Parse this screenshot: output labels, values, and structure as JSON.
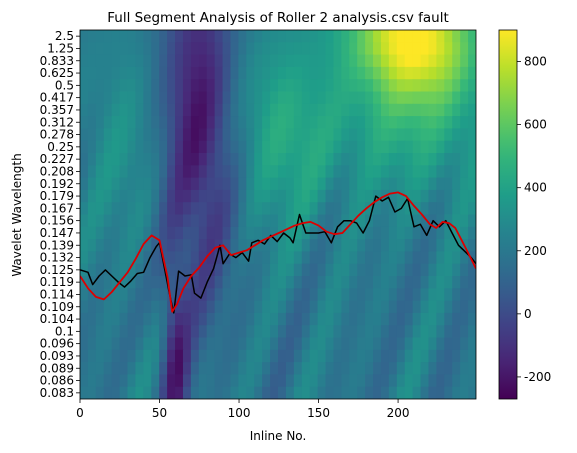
{
  "chart_data": {
    "type": "heatmap",
    "title": "Full Segment Analysis of Roller 2 analysis.csv fault",
    "xlabel": "Inline No.",
    "ylabel": "Wavelet Wavelength",
    "xlim": [
      0,
      249
    ],
    "x_ticks": [
      0,
      50,
      100,
      150,
      200
    ],
    "y_ticks": [
      "2.5",
      "1.25",
      "0.833",
      "0.625",
      "0.5",
      "0.417",
      "0.357",
      "0.312",
      "0.278",
      "0.25",
      "0.227",
      "0.208",
      "0.192",
      "0.179",
      "0.167",
      "0.156",
      "0.147",
      "0.139",
      "0.132",
      "0.125",
      "0.119",
      "0.114",
      "0.109",
      "0.104",
      "0.1",
      "0.096",
      "0.093",
      "0.089",
      "0.086",
      "0.083"
    ],
    "colorbar": {
      "colormap": "viridis",
      "range": [
        -270,
        900
      ],
      "ticks": [
        -200,
        0,
        200,
        400,
        600,
        800
      ]
    },
    "colormap_stops": [
      "#440154",
      "#482878",
      "#3e4989",
      "#31688e",
      "#26828e",
      "#1f9e89",
      "#35b779",
      "#6ece58",
      "#b5de2b",
      "#fde725"
    ],
    "series": [
      {
        "color": "#000000",
        "x": [
          0,
          5,
          8,
          12,
          16,
          20,
          24,
          28,
          32,
          36,
          40,
          44,
          48,
          50,
          53,
          56,
          59,
          62,
          64,
          66,
          70,
          72,
          76,
          80,
          84,
          88,
          90,
          94,
          98,
          102,
          106,
          108,
          112,
          116,
          120,
          124,
          128,
          132,
          134,
          138,
          142,
          146,
          150,
          154,
          158,
          162,
          166,
          170,
          174,
          178,
          182,
          186,
          190,
          194,
          198,
          202,
          206,
          210,
          214,
          218,
          222,
          226,
          230,
          234,
          238,
          242,
          246,
          249
        ],
        "y": [
          19.0,
          19.2,
          20.2,
          19.5,
          19.0,
          19.5,
          20.0,
          20.4,
          19.9,
          19.3,
          19.2,
          18.0,
          17.1,
          16.8,
          18.8,
          20.8,
          22.5,
          19.1,
          19.3,
          19.5,
          19.4,
          20.9,
          21.3,
          20.0,
          18.9,
          17.0,
          18.5,
          17.7,
          18.0,
          17.6,
          18.3,
          16.8,
          16.6,
          16.9,
          16.2,
          16.7,
          16.0,
          16.4,
          16.8,
          14.5,
          16.0,
          16.0,
          16.0,
          15.9,
          16.8,
          15.5,
          15.0,
          15.0,
          15.2,
          16.0,
          15.0,
          13.0,
          13.4,
          13.1,
          14.3,
          14.0,
          13.2,
          15.5,
          15.3,
          16.2,
          15.0,
          15.5,
          15.0,
          16.0,
          17.0,
          17.5,
          18.0,
          18.5
        ]
      },
      {
        "color": "#dd0000",
        "x": [
          0,
          5,
          10,
          15,
          20,
          25,
          30,
          35,
          40,
          45,
          50,
          55,
          58,
          61,
          65,
          70,
          75,
          80,
          85,
          90,
          95,
          100,
          105,
          110,
          115,
          120,
          125,
          130,
          135,
          140,
          145,
          150,
          155,
          160,
          165,
          170,
          175,
          180,
          185,
          190,
          195,
          200,
          205,
          210,
          215,
          220,
          224,
          228,
          232,
          236,
          240,
          244,
          249
        ],
        "y": [
          19.5,
          20.5,
          21.2,
          21.4,
          20.8,
          20.0,
          19.2,
          18.1,
          16.9,
          16.2,
          16.6,
          19.6,
          22.4,
          21.8,
          20.5,
          19.5,
          18.8,
          17.9,
          17.2,
          17.0,
          17.8,
          17.6,
          17.4,
          17.0,
          16.6,
          16.3,
          16.0,
          15.7,
          15.4,
          15.2,
          15.1,
          15.4,
          15.9,
          16.1,
          16.0,
          15.3,
          14.6,
          14.0,
          13.5,
          13.1,
          12.8,
          12.7,
          13.0,
          13.8,
          14.5,
          15.3,
          15.6,
          15.1,
          15.2,
          15.6,
          16.6,
          17.6,
          18.9
        ]
      }
    ]
  }
}
